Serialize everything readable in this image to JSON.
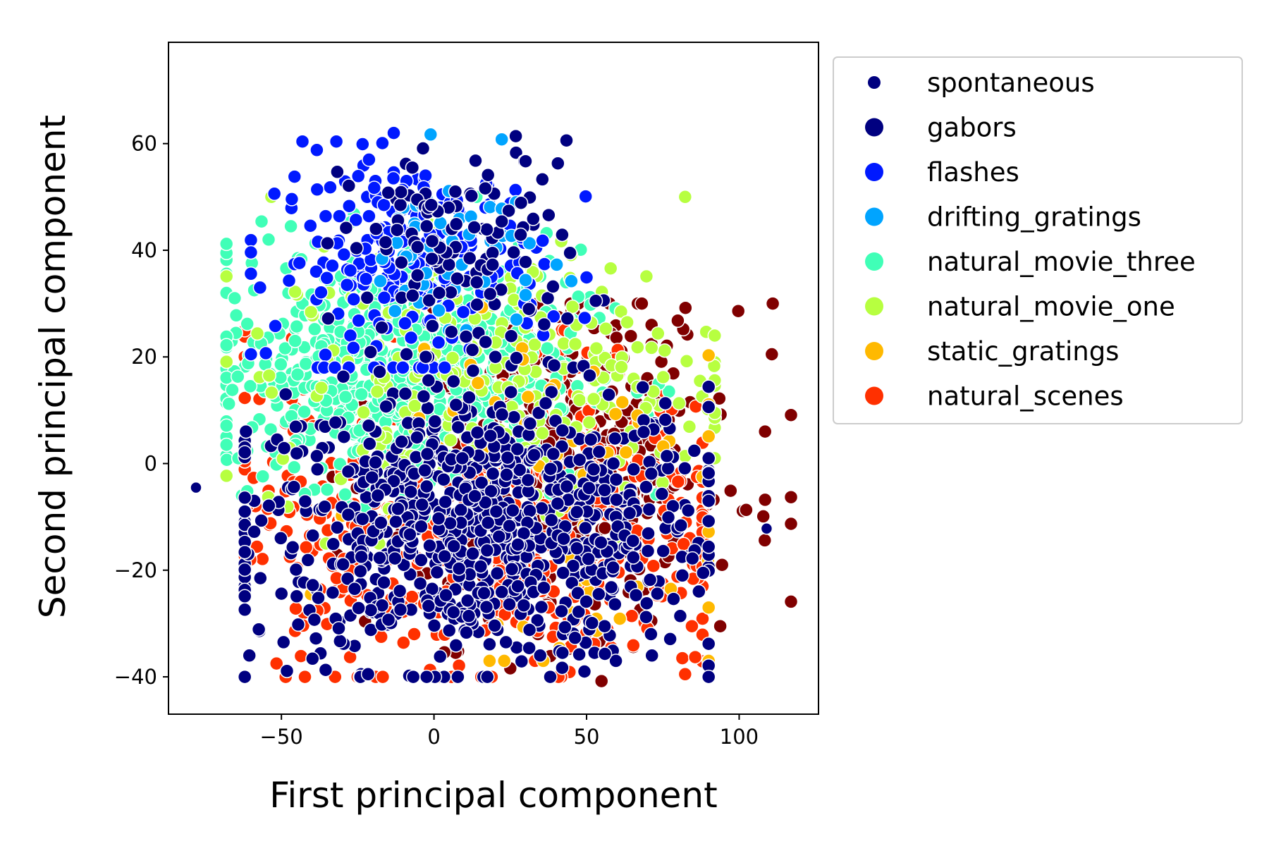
{
  "chart_data": {
    "type": "scatter",
    "xlabel": "First principal component",
    "ylabel": "Second principal component",
    "xlim": [
      -87,
      126
    ],
    "ylim": [
      -47,
      79
    ],
    "xticks": [
      -50,
      0,
      50,
      100
    ],
    "yticks": [
      -40,
      -20,
      0,
      20,
      40,
      60
    ],
    "grid": false,
    "legend_placement": "outside-right",
    "series": [
      {
        "name": "spontaneous",
        "color": "#00007f",
        "marker": "small",
        "x": [
          -78,
          109
        ],
        "y": [
          -4.5,
          -12.2
        ]
      },
      {
        "name": "gabors",
        "color": "#000080",
        "x": [],
        "y": []
      },
      {
        "name": "flashes",
        "color": "#0019ff",
        "x": [],
        "y": []
      },
      {
        "name": "drifting_gratings",
        "color": "#00a4ff",
        "x": [],
        "y": []
      },
      {
        "name": "natural_movie_three",
        "color": "#40ffb7",
        "x": [],
        "y": []
      },
      {
        "name": "natural_movie_one",
        "color": "#b7ff40",
        "x": [],
        "y": []
      },
      {
        "name": "static_gratings",
        "color": "#ffb900",
        "x": [],
        "y": []
      },
      {
        "name": "natural_scenes",
        "color": "#ff3000",
        "x": [],
        "y": []
      },
      {
        "color": "#800000",
        "x": [],
        "y": []
      }
    ]
  }
}
